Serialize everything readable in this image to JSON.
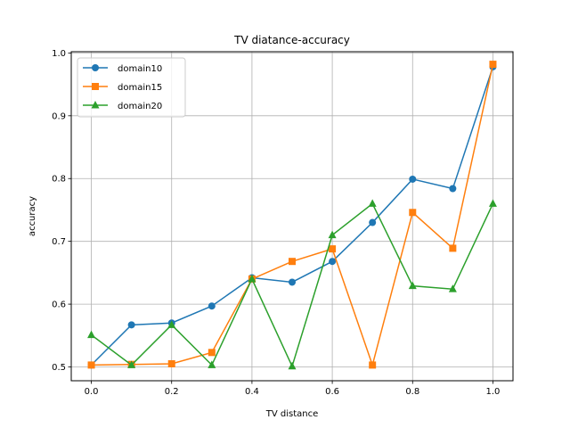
{
  "chart_data": {
    "type": "line",
    "title": "TV diatance-accuracy",
    "xlabel": "TV distance",
    "ylabel": "accuracy",
    "xlim": [
      -0.05,
      1.05
    ],
    "ylim": [
      0.478,
      1.002
    ],
    "xticks": [
      0.0,
      0.2,
      0.4,
      0.6,
      0.8,
      1.0
    ],
    "xtick_labels": [
      "0.0",
      "0.2",
      "0.4",
      "0.6",
      "0.8",
      "1.0"
    ],
    "yticks": [
      0.5,
      0.6,
      0.7,
      0.8,
      0.9,
      1.0
    ],
    "ytick_labels": [
      "0.5",
      "0.6",
      "0.7",
      "0.8",
      "0.9",
      "1.0"
    ],
    "grid": true,
    "legend_position": "top-left",
    "x": [
      0.0,
      0.1,
      0.2,
      0.3,
      0.4,
      0.5,
      0.6,
      0.7,
      0.8,
      0.9,
      1.0
    ],
    "series": [
      {
        "name": "domain10",
        "marker": "circle",
        "color": "#1f77b4",
        "values": [
          0.503,
          0.567,
          0.57,
          0.597,
          0.642,
          0.635,
          0.668,
          0.73,
          0.799,
          0.784,
          0.978
        ]
      },
      {
        "name": "domain15",
        "marker": "square",
        "color": "#ff7f0e",
        "values": [
          0.503,
          0.504,
          0.505,
          0.523,
          0.64,
          0.668,
          0.688,
          0.503,
          0.746,
          0.689,
          0.982
        ]
      },
      {
        "name": "domain20",
        "marker": "triangle",
        "color": "#2ca02c",
        "values": [
          0.551,
          0.503,
          0.567,
          0.503,
          0.64,
          0.501,
          0.71,
          0.76,
          0.629,
          0.624,
          0.76
        ]
      }
    ]
  }
}
